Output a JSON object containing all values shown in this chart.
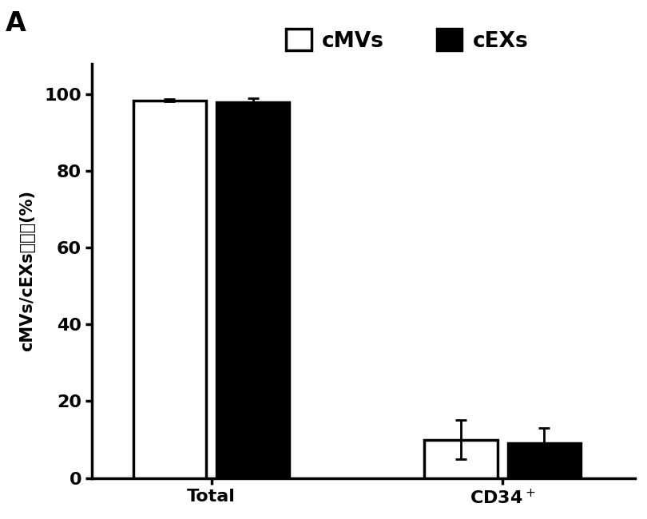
{
  "categories": [
    "Total",
    "CD34+"
  ],
  "cmvs_values": [
    98.5,
    10.0
  ],
  "cexs_values": [
    98.0,
    9.0
  ],
  "cmvs_errors": [
    0.3,
    5.0
  ],
  "cexs_errors": [
    1.0,
    4.0
  ],
  "cmvs_color": "#ffffff",
  "cexs_color": "#000000",
  "bar_edgecolor": "#000000",
  "ylabel_latin": "cMVs/cEXs",
  "ylabel_chinese": "的纯化",
  "ylabel_suffix": "(%)",
  "ylim": [
    0,
    108
  ],
  "yticks": [
    0,
    20,
    40,
    60,
    80,
    100
  ],
  "legend_cmvs": "cMVs",
  "legend_cexs": "cEXs",
  "panel_label": "A",
  "bar_width": 0.55,
  "tick_fontsize": 16,
  "legend_fontsize": 19,
  "ylabel_fontsize": 15,
  "bar_linewidth": 2.5,
  "axis_linewidth": 2.5,
  "capsize": 5,
  "error_linewidth": 2.0,
  "group_positions": [
    1.0,
    3.2
  ],
  "xlim": [
    0.1,
    4.2
  ]
}
